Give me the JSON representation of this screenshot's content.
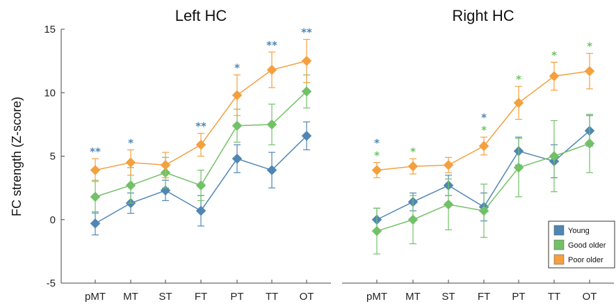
{
  "chart_data": {
    "type": "line",
    "ylabel": "FC strength (Z-score)",
    "ylim": [
      -5,
      15
    ],
    "yticks": [
      -5,
      0,
      5,
      10,
      15
    ],
    "grid": false,
    "legend_position": "bottom-right",
    "categories": [
      "pMT",
      "MT",
      "ST",
      "FT",
      "PT",
      "TT",
      "OT"
    ],
    "colors": {
      "Young": "#4f86b3",
      "Good older": "#72c167",
      "Poor older": "#f4a03f"
    },
    "panels": [
      {
        "title": "Left HC",
        "series": [
          {
            "name": "Young",
            "values": [
              -0.3,
              1.3,
              2.3,
              0.7,
              4.8,
              3.9,
              6.6
            ],
            "err": [
              0.9,
              0.8,
              0.8,
              1.2,
              1.1,
              1.4,
              1.1
            ]
          },
          {
            "name": "Good older",
            "values": [
              1.8,
              2.7,
              3.7,
              2.7,
              7.4,
              7.5,
              10.1
            ],
            "err": [
              1.3,
              1.4,
              1.2,
              1.2,
              1.3,
              1.6,
              1.3
            ]
          },
          {
            "name": "Poor older",
            "values": [
              3.9,
              4.5,
              4.3,
              5.9,
              9.8,
              11.8,
              12.5
            ],
            "err": [
              0.9,
              1.0,
              1.0,
              0.9,
              1.6,
              1.4,
              1.7
            ]
          }
        ],
        "significance": [
          {
            "category": "pMT",
            "marks": [
              {
                "text": "**",
                "group": "Young"
              }
            ]
          },
          {
            "category": "MT",
            "marks": [
              {
                "text": "*",
                "group": "Young"
              }
            ]
          },
          {
            "category": "FT",
            "marks": [
              {
                "text": "**",
                "group": "Young"
              }
            ]
          },
          {
            "category": "PT",
            "marks": [
              {
                "text": "*",
                "group": "Young"
              }
            ]
          },
          {
            "category": "TT",
            "marks": [
              {
                "text": "**",
                "group": "Young"
              }
            ]
          },
          {
            "category": "OT",
            "marks": [
              {
                "text": "**",
                "group": "Young"
              }
            ]
          }
        ]
      },
      {
        "title": "Right HC",
        "series": [
          {
            "name": "Young",
            "values": [
              0.0,
              1.4,
              2.7,
              1.0,
              5.4,
              4.6,
              7.0
            ],
            "err": [
              0.9,
              0.7,
              0.8,
              1.1,
              1.1,
              1.3,
              1.2
            ]
          },
          {
            "name": "Good older",
            "values": [
              -0.9,
              0.0,
              1.2,
              0.7,
              4.1,
              5.0,
              6.0
            ],
            "err": [
              1.8,
              1.9,
              2.0,
              2.1,
              2.3,
              2.8,
              2.3
            ]
          },
          {
            "name": "Poor older",
            "values": [
              3.9,
              4.2,
              4.3,
              5.8,
              9.2,
              11.3,
              11.7
            ],
            "err": [
              0.6,
              0.6,
              0.6,
              0.7,
              1.3,
              1.1,
              1.4
            ]
          }
        ],
        "significance": [
          {
            "category": "pMT",
            "marks": [
              {
                "text": "*",
                "group": "Young"
              },
              {
                "text": "*",
                "group": "Good older"
              }
            ]
          },
          {
            "category": "MT",
            "marks": [
              {
                "text": "*",
                "group": "Good older"
              }
            ]
          },
          {
            "category": "FT",
            "marks": [
              {
                "text": "*",
                "group": "Young"
              },
              {
                "text": "*",
                "group": "Good older"
              }
            ]
          },
          {
            "category": "PT",
            "marks": [
              {
                "text": "*",
                "group": "Good older"
              }
            ]
          },
          {
            "category": "TT",
            "marks": [
              {
                "text": "*",
                "group": "Good older"
              }
            ]
          },
          {
            "category": "OT",
            "marks": [
              {
                "text": "*",
                "group": "Good older"
              }
            ]
          }
        ]
      }
    ],
    "legend": [
      "Young",
      "Good older",
      "Poor older"
    ]
  }
}
